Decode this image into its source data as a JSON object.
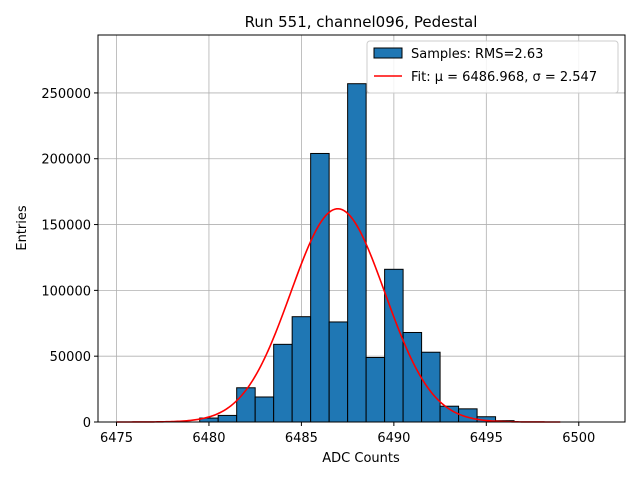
{
  "chart_data": {
    "type": "bar",
    "title": "Run 551, channel096, Pedestal",
    "xlabel": "ADC Counts",
    "ylabel": "Entries",
    "xlim": [
      6474.0,
      6502.5
    ],
    "ylim": [
      0,
      294000
    ],
    "xticks": [
      6475,
      6480,
      6485,
      6490,
      6495,
      6500
    ],
    "yticks": [
      0,
      50000,
      100000,
      150000,
      200000,
      250000
    ],
    "grid": true,
    "legend_position": "top-right",
    "histogram": {
      "name": "Samples: RMS=2.63",
      "color": "#1f77b4",
      "bins": [
        {
          "x": 6480,
          "value": 3000
        },
        {
          "x": 6481,
          "value": 5000
        },
        {
          "x": 6482,
          "value": 26000
        },
        {
          "x": 6483,
          "value": 19000
        },
        {
          "x": 6484,
          "value": 59000
        },
        {
          "x": 6485,
          "value": 80000
        },
        {
          "x": 6486,
          "value": 204000
        },
        {
          "x": 6487,
          "value": 76000
        },
        {
          "x": 6488,
          "value": 257000
        },
        {
          "x": 6489,
          "value": 49000
        },
        {
          "x": 6490,
          "value": 116000
        },
        {
          "x": 6491,
          "value": 68000
        },
        {
          "x": 6492,
          "value": 53000
        },
        {
          "x": 6493,
          "value": 12000
        },
        {
          "x": 6494,
          "value": 10000
        },
        {
          "x": 6495,
          "value": 4000
        },
        {
          "x": 6496,
          "value": 1000
        }
      ]
    },
    "fit": {
      "name": "Fit: μ = 6486.968, σ = 2.547",
      "color": "#ff0000",
      "mu": 6486.968,
      "sigma": 2.547,
      "amplitude": 162000,
      "x_range": [
        6475,
        6499
      ]
    }
  }
}
